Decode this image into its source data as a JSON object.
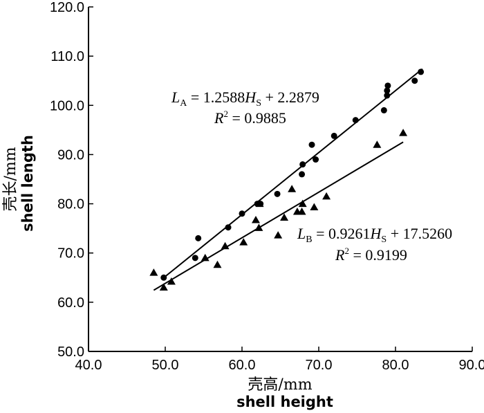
{
  "chart_data": {
    "type": "scatter",
    "xlabel": "壳高/mm",
    "xlabel_sub": "shell height",
    "ylabel": "壳长/mm",
    "ylabel_sub": "shell length",
    "xlim": [
      40.0,
      90.0
    ],
    "ylim": [
      50.0,
      120.0
    ],
    "x_ticks": [
      "40.0",
      "50.0",
      "60.0",
      "70.0",
      "80.0",
      "90.0"
    ],
    "y_ticks": [
      "50.0",
      "60.0",
      "70.0",
      "80.0",
      "90.0",
      "100.0",
      "110.0",
      "120.0"
    ],
    "grid": false,
    "legend": "none",
    "series": [
      {
        "marker": "circle",
        "points": [
          [
            49.8,
            65.0
          ],
          [
            54.3,
            73.0
          ],
          [
            53.9,
            69.0
          ],
          [
            58.2,
            75.2
          ],
          [
            60.0,
            78.0
          ],
          [
            62.0,
            80.0
          ],
          [
            62.4,
            80.0
          ],
          [
            64.6,
            82.0
          ],
          [
            67.8,
            86.0
          ],
          [
            67.9,
            88.0
          ],
          [
            69.1,
            92.0
          ],
          [
            69.6,
            89.0
          ],
          [
            72.0,
            93.8
          ],
          [
            74.8,
            97.0
          ],
          [
            78.5,
            99.0
          ],
          [
            78.9,
            102.0
          ],
          [
            78.9,
            103.0
          ],
          [
            79.0,
            104.0
          ],
          [
            82.5,
            105.0
          ],
          [
            83.3,
            106.8
          ]
        ],
        "fit": {
          "slope": 1.2588,
          "intercept": 2.2879,
          "x_range": [
            49.8,
            83.5
          ]
        },
        "equation": {
          "L": "L",
          "sub": "A",
          "eq": " = 1.2588",
          "H": "H",
          "hsub": "S",
          "rest": " + 2.2879"
        },
        "r2": {
          "R": "R",
          "sup": "2",
          "rest": " = 0.9885"
        }
      },
      {
        "marker": "triangle",
        "points": [
          [
            48.5,
            66.0
          ],
          [
            49.8,
            63.0
          ],
          [
            50.8,
            64.2
          ],
          [
            55.2,
            69.0
          ],
          [
            56.8,
            67.6
          ],
          [
            57.8,
            71.4
          ],
          [
            60.2,
            72.2
          ],
          [
            61.8,
            76.7
          ],
          [
            62.2,
            75.1
          ],
          [
            62.3,
            80.0
          ],
          [
            64.7,
            73.6
          ],
          [
            65.5,
            77.2
          ],
          [
            66.5,
            83.0
          ],
          [
            67.2,
            78.4
          ],
          [
            67.8,
            78.4
          ],
          [
            67.9,
            80.0
          ],
          [
            69.4,
            79.3
          ],
          [
            71.0,
            81.5
          ],
          [
            77.6,
            92.0
          ],
          [
            81.0,
            94.4
          ]
        ],
        "fit": {
          "slope": 0.9261,
          "intercept": 17.526,
          "x_range": [
            48.5,
            81.0
          ]
        },
        "equation": {
          "L": "L",
          "sub": "B",
          "eq": " = 0.9261",
          "H": "H",
          "hsub": "S",
          "rest": " + 17.5260"
        },
        "r2": {
          "R": "R",
          "sup": "2",
          "rest": " = 0.9199"
        }
      }
    ]
  }
}
